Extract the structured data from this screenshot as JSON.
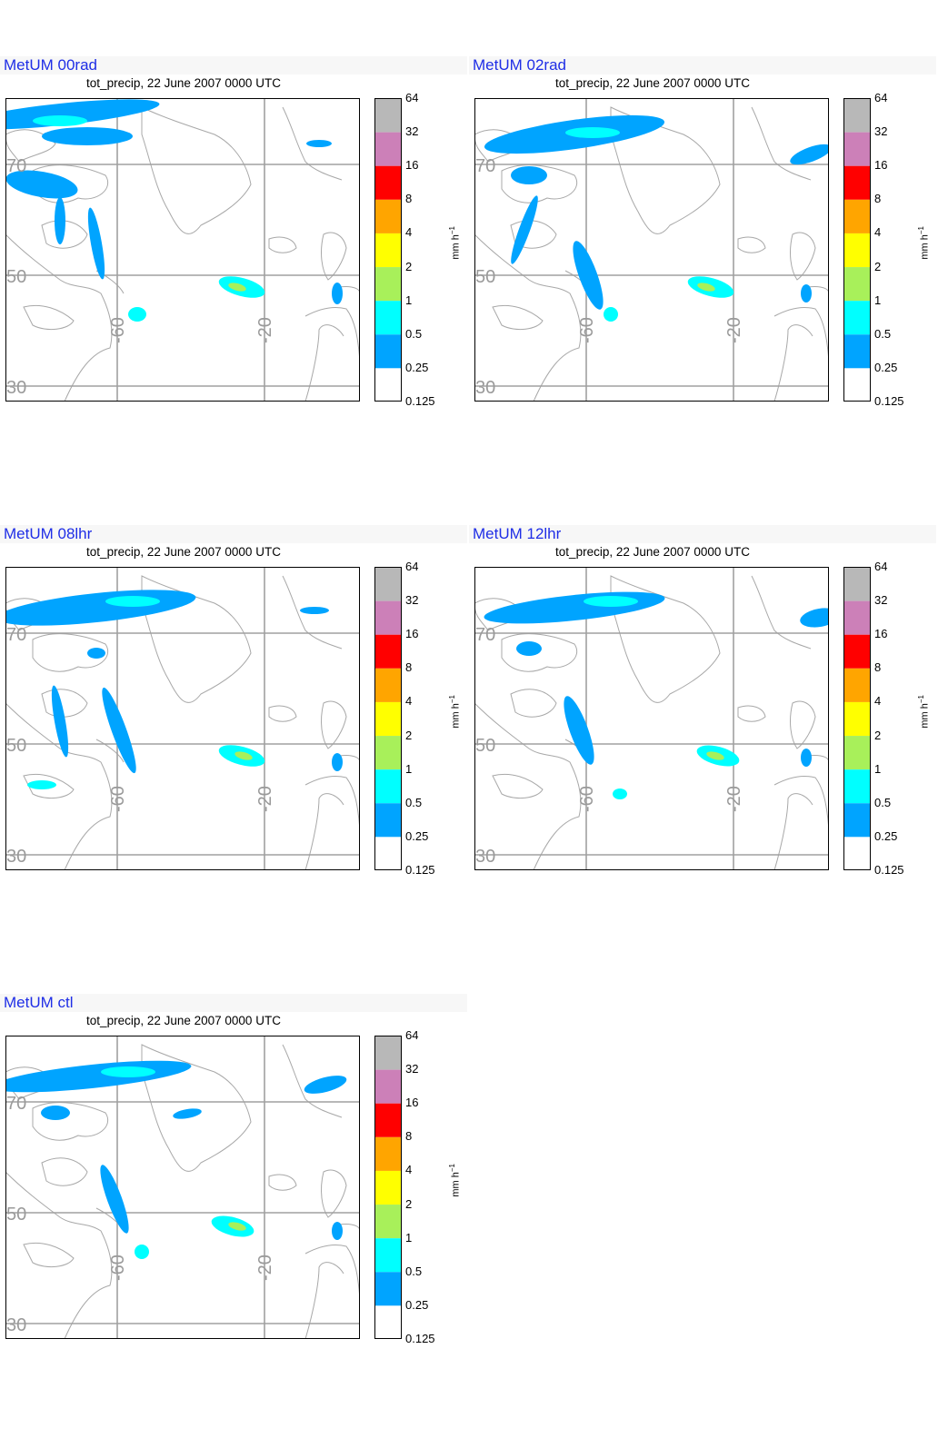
{
  "subtitle": "tot_precip, 22 June 2007 0000 UTC",
  "colorbar": {
    "levels": [
      "64",
      "32",
      "16",
      "8",
      "4",
      "2",
      "1",
      "0.5",
      "0.25",
      "0.125"
    ],
    "colors": [
      "#b8b8b8",
      "#cc80b8",
      "#ff0000",
      "#ffa500",
      "#ffff00",
      "#a8f05a",
      "#00ffff",
      "#00a4ff",
      "#ffffff"
    ],
    "unit_base": "mm h",
    "unit_exp": "−1"
  },
  "map": {
    "lat_labels": [
      "70",
      "50",
      "30"
    ],
    "lon_labels": [
      "-60",
      "-20"
    ],
    "grid_color": "#a0a0a0",
    "coast_color": "#a8a8a8"
  },
  "panels": [
    {
      "title": "MetUM 00rad"
    },
    {
      "title": "MetUM 02rad"
    },
    {
      "title": "MetUM 08lhr"
    },
    {
      "title": "MetUM 12lhr"
    },
    {
      "title": "MetUM ctl"
    }
  ]
}
